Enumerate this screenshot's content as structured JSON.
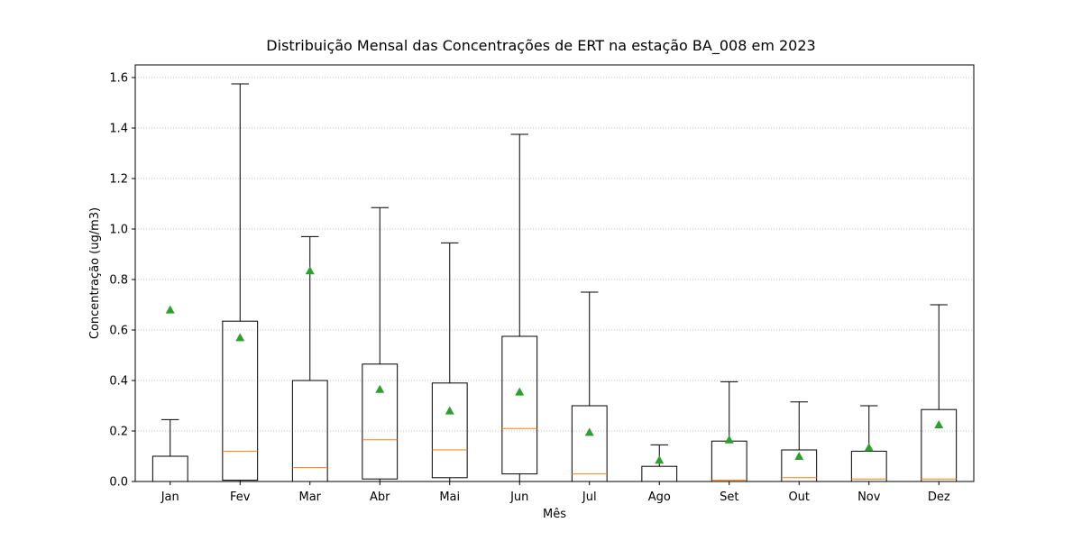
{
  "chart_data": {
    "type": "box",
    "title": "Distribuição Mensal das Concentrações de ERT na estação BA_008 em 2023",
    "xlabel": "Mês",
    "ylabel": "Concentração (ug/m3)",
    "ylim": [
      0,
      1.65
    ],
    "yticks": [
      "0.0",
      "0.2",
      "0.4",
      "0.6",
      "0.8",
      "1.0",
      "1.2",
      "1.4",
      "1.6"
    ],
    "grid": "y-dotted",
    "categories": [
      "Jan",
      "Fev",
      "Mar",
      "Abr",
      "Mai",
      "Jun",
      "Jul",
      "Ago",
      "Set",
      "Out",
      "Nov",
      "Dez"
    ],
    "boxes": [
      {
        "whisker_low": 0.0,
        "q1": 0.0,
        "median": 0.0,
        "q3": 0.1,
        "whisker_high": 0.245,
        "mean": 0.68
      },
      {
        "whisker_low": 0.0,
        "q1": 0.005,
        "median": 0.12,
        "q3": 0.635,
        "whisker_high": 1.575,
        "mean": 0.57
      },
      {
        "whisker_low": 0.0,
        "q1": 0.0,
        "median": 0.055,
        "q3": 0.4,
        "whisker_high": 0.97,
        "mean": 0.835
      },
      {
        "whisker_low": 0.0,
        "q1": 0.01,
        "median": 0.165,
        "q3": 0.465,
        "whisker_high": 1.085,
        "mean": 0.365
      },
      {
        "whisker_low": 0.0,
        "q1": 0.015,
        "median": 0.125,
        "q3": 0.39,
        "whisker_high": 0.945,
        "mean": 0.28
      },
      {
        "whisker_low": 0.0,
        "q1": 0.03,
        "median": 0.21,
        "q3": 0.575,
        "whisker_high": 1.375,
        "mean": 0.355
      },
      {
        "whisker_low": 0.0,
        "q1": 0.0,
        "median": 0.03,
        "q3": 0.3,
        "whisker_high": 0.75,
        "mean": 0.195
      },
      {
        "whisker_low": 0.0,
        "q1": 0.0,
        "median": 0.0,
        "q3": 0.06,
        "whisker_high": 0.145,
        "mean": 0.085
      },
      {
        "whisker_low": 0.0,
        "q1": 0.0,
        "median": 0.005,
        "q3": 0.16,
        "whisker_high": 0.395,
        "mean": 0.165
      },
      {
        "whisker_low": 0.0,
        "q1": 0.0,
        "median": 0.015,
        "q3": 0.125,
        "whisker_high": 0.315,
        "mean": 0.1
      },
      {
        "whisker_low": 0.0,
        "q1": 0.0,
        "median": 0.01,
        "q3": 0.12,
        "whisker_high": 0.3,
        "mean": 0.135
      },
      {
        "whisker_low": 0.0,
        "q1": 0.0,
        "median": 0.01,
        "q3": 0.285,
        "whisker_high": 0.7,
        "mean": 0.225
      }
    ],
    "colors": {
      "box": "#000000",
      "median": "#ff7f0e",
      "mean": "#2ca02c",
      "grid": "#b0b0b0"
    }
  }
}
